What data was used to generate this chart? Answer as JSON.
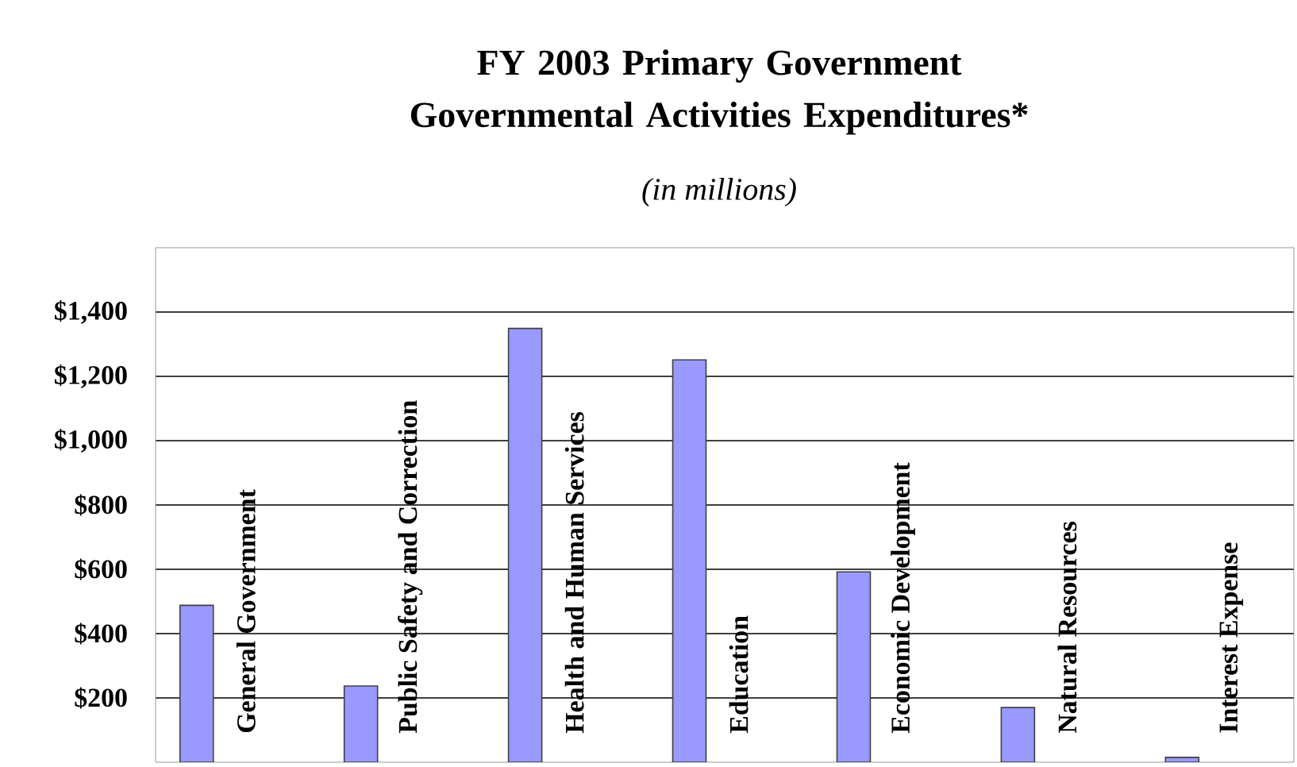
{
  "chart_data": {
    "type": "bar",
    "title": "FY 2003 Primary Government Governmental Activities Expenditures*",
    "subtitle": "(in millions)",
    "categories": [
      "General Government",
      "Public Safety and Correction",
      "Health and Human Services",
      "Education",
      "Economic Development",
      "Natural Resources",
      "Interest Expense"
    ],
    "values": [
      488,
      237,
      1349,
      1251,
      592,
      170,
      15
    ],
    "color": "#9999ff",
    "ylim": [
      0,
      1600
    ],
    "yticks": [
      {
        "value": 200,
        "label": "$200"
      },
      {
        "value": 400,
        "label": "$400"
      },
      {
        "value": 600,
        "label": "$600"
      },
      {
        "value": 800,
        "label": "$800"
      },
      {
        "value": 1000,
        "label": "$1,000"
      },
      {
        "value": 1200,
        "label": "$1,200"
      },
      {
        "value": 1400,
        "label": "$1,400"
      }
    ],
    "grid": "y"
  }
}
